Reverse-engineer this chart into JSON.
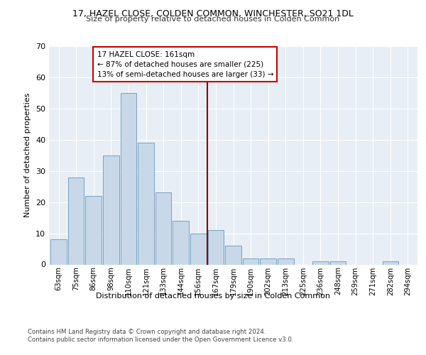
{
  "title_line1": "17, HAZEL CLOSE, COLDEN COMMON, WINCHESTER, SO21 1DL",
  "title_line2": "Size of property relative to detached houses in Colden Common",
  "xlabel": "Distribution of detached houses by size in Colden Common",
  "ylabel": "Number of detached properties",
  "categories": [
    "63sqm",
    "75sqm",
    "86sqm",
    "98sqm",
    "110sqm",
    "121sqm",
    "133sqm",
    "144sqm",
    "156sqm",
    "167sqm",
    "179sqm",
    "190sqm",
    "202sqm",
    "213sqm",
    "225sqm",
    "236sqm",
    "248sqm",
    "259sqm",
    "271sqm",
    "282sqm",
    "294sqm"
  ],
  "values": [
    8,
    28,
    22,
    35,
    55,
    39,
    23,
    14,
    10,
    11,
    6,
    2,
    2,
    2,
    0,
    1,
    1,
    0,
    0,
    1,
    0
  ],
  "bar_color": "#c8d8e8",
  "bar_edge_color": "#6699bb",
  "vline_color": "#8b0000",
  "annotation_text": "17 HAZEL CLOSE: 161sqm\n← 87% of detached houses are smaller (225)\n13% of semi-detached houses are larger (33) →",
  "annotation_box_color": "#ffffff",
  "annotation_box_edge": "#cc0000",
  "ylim": [
    0,
    70
  ],
  "yticks": [
    0,
    10,
    20,
    30,
    40,
    50,
    60,
    70
  ],
  "background_color": "#e8eef5",
  "grid_color": "#ffffff",
  "fig_background": "#ffffff",
  "footer_line1": "Contains HM Land Registry data © Crown copyright and database right 2024.",
  "footer_line2": "Contains public sector information licensed under the Open Government Licence v3.0."
}
